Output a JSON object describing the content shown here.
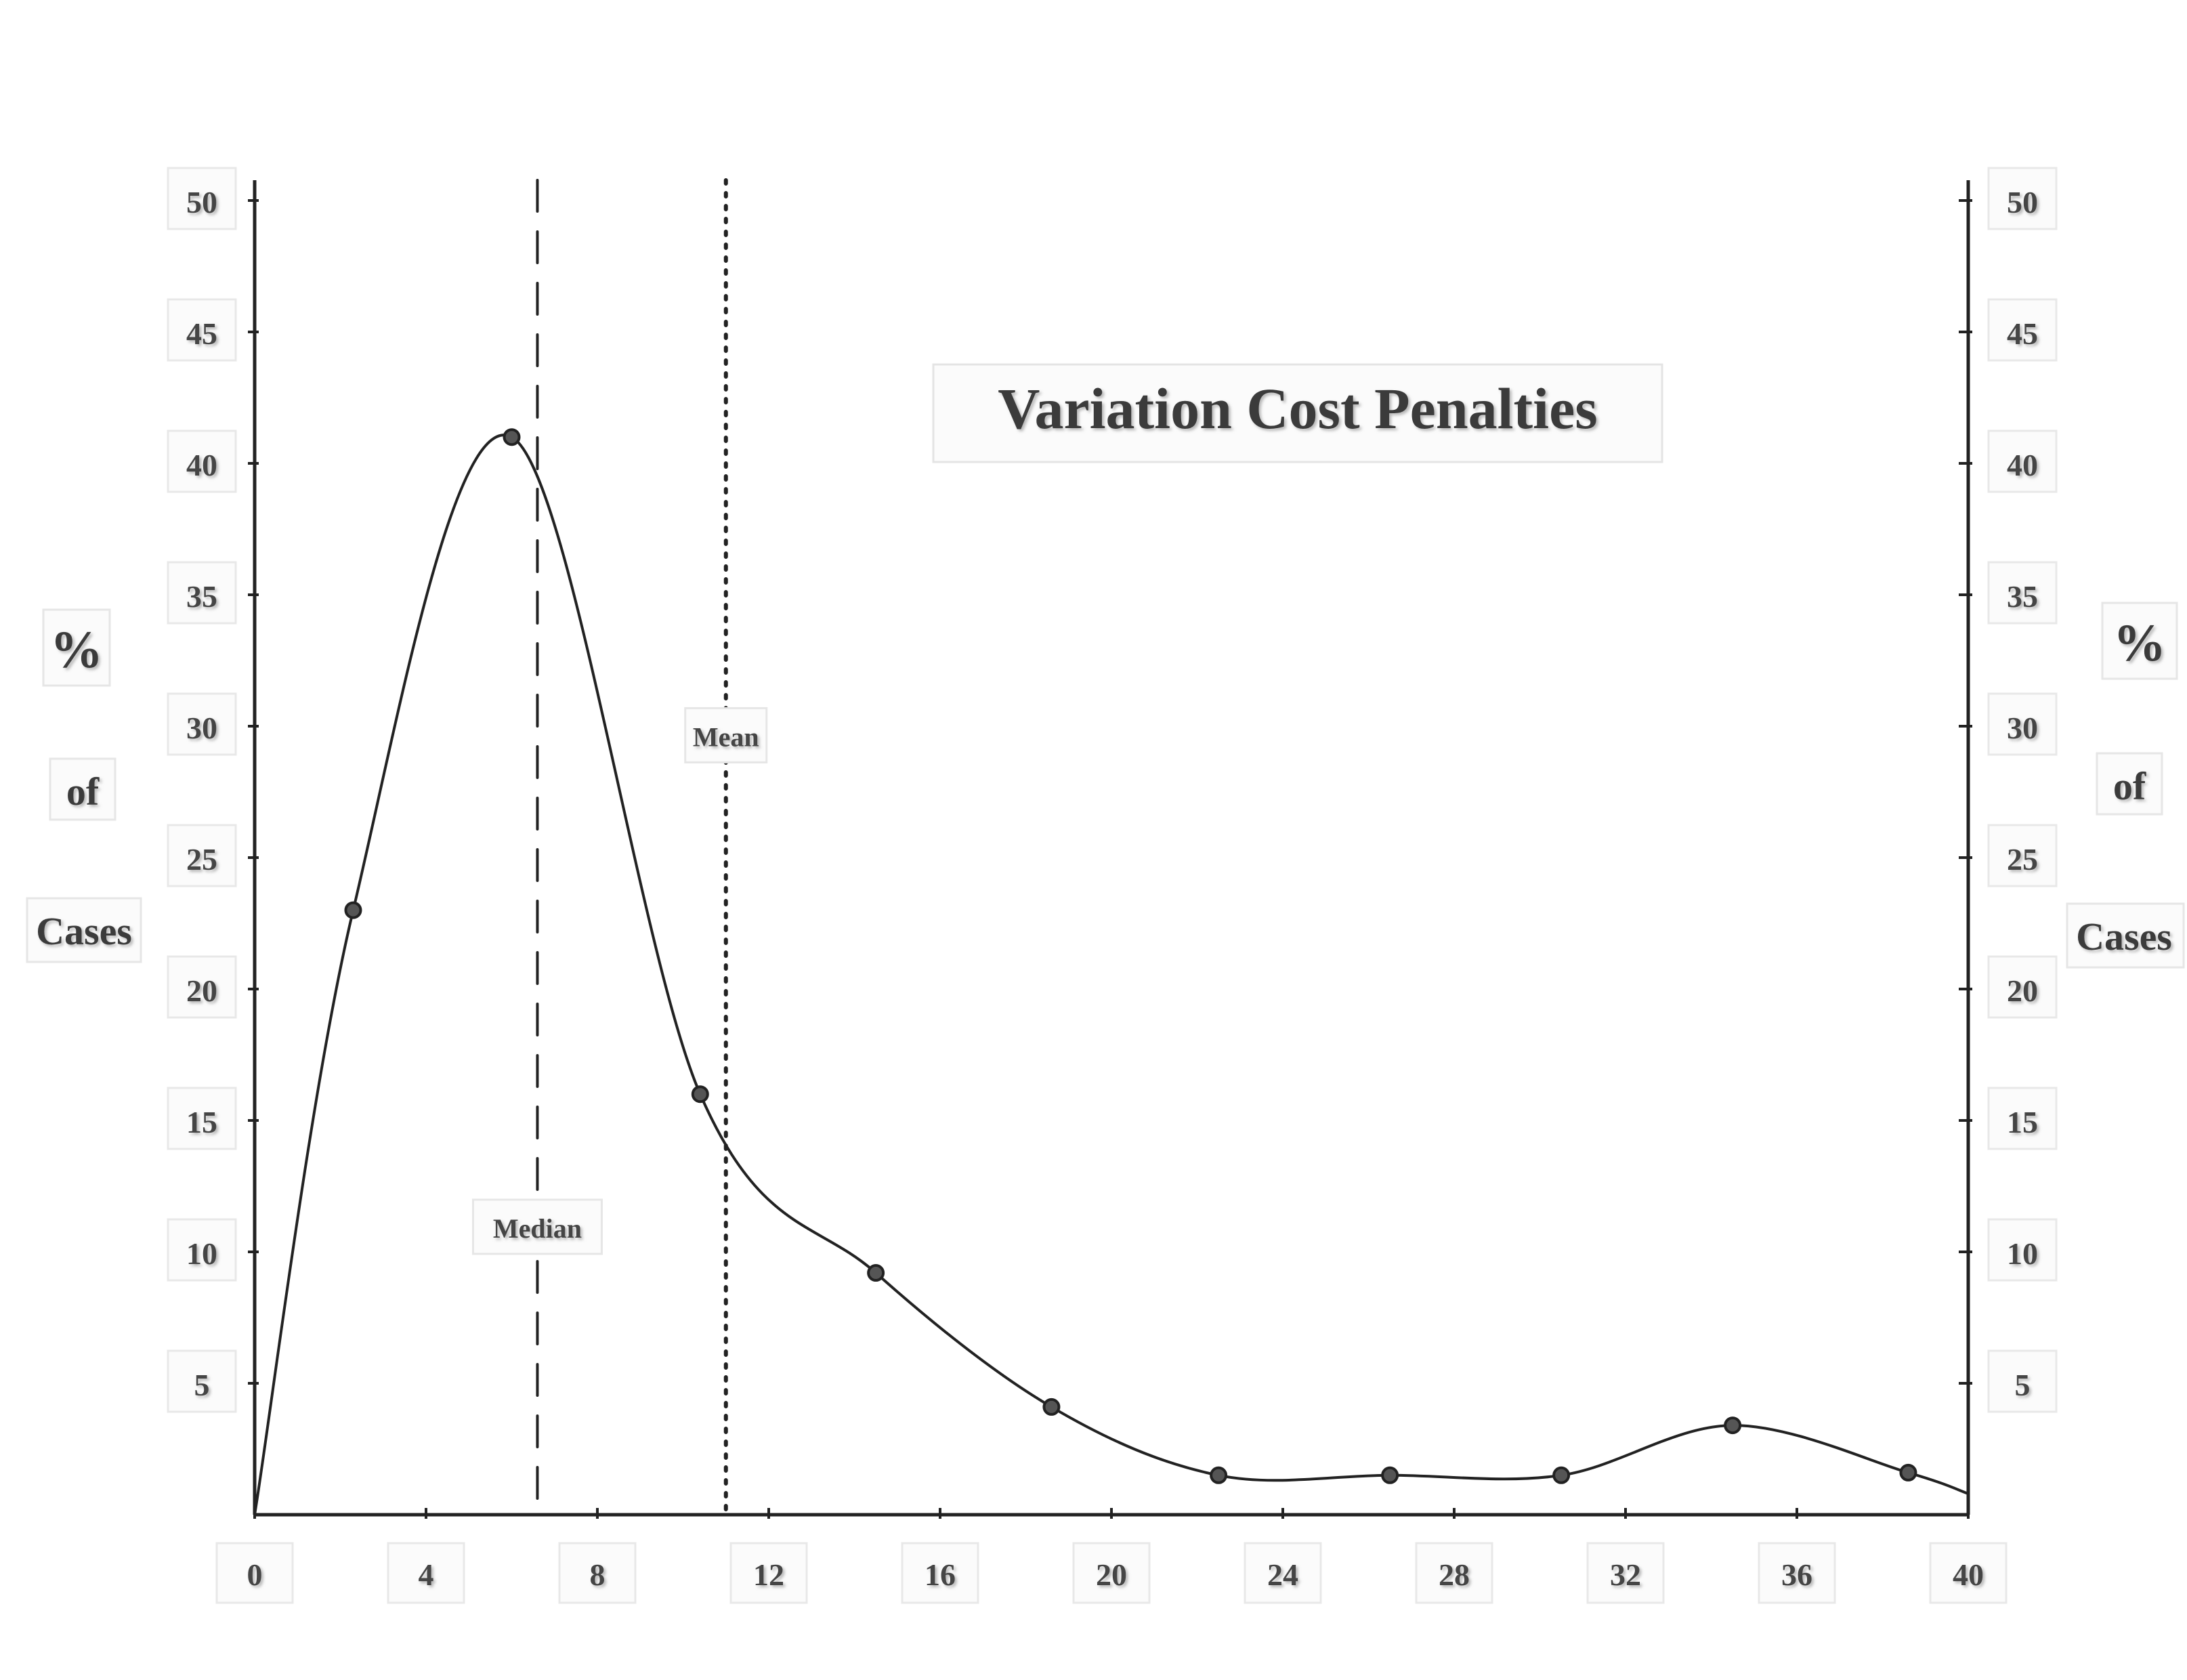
{
  "chart_data": {
    "type": "line",
    "title": "Variation Cost Penalties",
    "ylabel_left": [
      "%",
      "of",
      "Cases"
    ],
    "ylabel_right": [
      "%",
      "of",
      "Cases"
    ],
    "xlabel": "",
    "xlim": [
      0,
      40
    ],
    "ylim": [
      0,
      50
    ],
    "x_ticks": [
      0,
      4,
      8,
      12,
      16,
      20,
      24,
      28,
      32,
      36,
      40
    ],
    "y_ticks": [
      5,
      10,
      15,
      20,
      25,
      30,
      35,
      40,
      45,
      50
    ],
    "grid": false,
    "series": [
      {
        "x": [
          0,
          2.3,
          6.0,
          10.4,
          14.5,
          18.6,
          22.5,
          26.5,
          30.5,
          34.5,
          38.6,
          40
        ],
        "y": [
          0,
          23,
          41,
          16,
          9.2,
          4.1,
          1.5,
          1.5,
          1.5,
          3.4,
          1.6,
          0.8
        ],
        "marker_indices": [
          1,
          2,
          3,
          4,
          5,
          6,
          7,
          8,
          9,
          10
        ]
      }
    ],
    "reference_lines": [
      {
        "label": "Median",
        "x": 6.6,
        "style": "dashed"
      },
      {
        "label": "Mean",
        "x": 11.0,
        "style": "dotted"
      }
    ]
  }
}
